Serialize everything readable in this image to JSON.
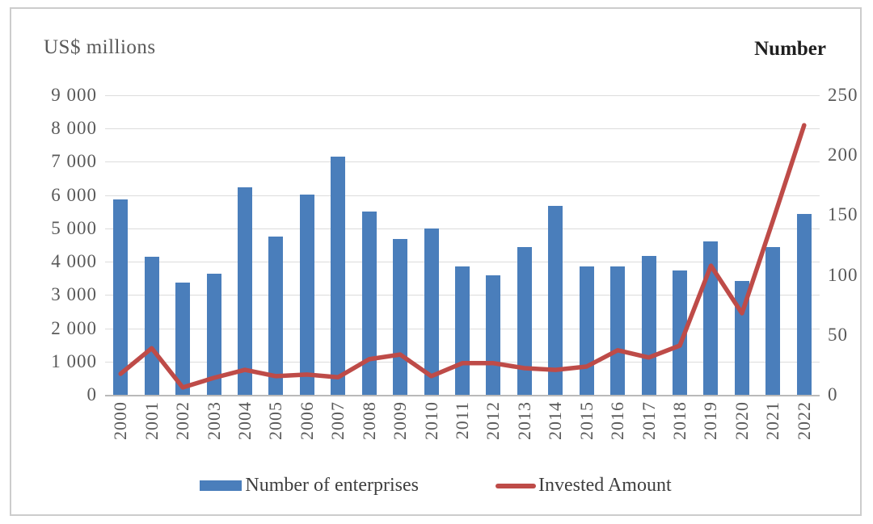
{
  "figure": {
    "left_axis_title": "US$ millions",
    "right_axis_title": "Number"
  },
  "legend": {
    "items": [
      {
        "label": "Number of enterprises",
        "swatch": "bar",
        "color": "#4a7ebb"
      },
      {
        "label": "Invested Amount",
        "swatch": "line",
        "color": "#be4b48"
      }
    ]
  },
  "colors": {
    "bar_blue": "#4a7ebb",
    "line_red": "#be4b48",
    "gridline": "#dcdcdc",
    "axis_zero_line": "#b9b9b9",
    "tick_text": "#595959",
    "frame_border": "#cccccc"
  },
  "chart_data": {
    "type": "bar+line combo",
    "title": "",
    "categories": [
      "2000",
      "2001",
      "2002",
      "2003",
      "2004",
      "2005",
      "2006",
      "2007",
      "2008",
      "2009",
      "2010",
      "2011",
      "2012",
      "2013",
      "2014",
      "2015",
      "2016",
      "2017",
      "2018",
      "2019",
      "2020",
      "2021",
      "2022"
    ],
    "series": [
      {
        "name": "Number of enterprises",
        "type": "bar",
        "axis": "right",
        "color": "#4a7ebb",
        "values": [
          163,
          115,
          94,
          101,
          173,
          132,
          167,
          199,
          153,
          130,
          139,
          107,
          100,
          123,
          158,
          107,
          107,
          116,
          104,
          128,
          95,
          123,
          151
        ]
      },
      {
        "name": "Invested Amount",
        "type": "line",
        "axis": "left",
        "color": "#be4b48",
        "values": [
          630,
          1400,
          220,
          510,
          750,
          560,
          610,
          530,
          1070,
          1210,
          560,
          950,
          950,
          800,
          750,
          850,
          1340,
          1120,
          1480,
          3880,
          2450,
          5240,
          8100
        ]
      }
    ],
    "left_axis": {
      "title": "US$ millions",
      "min": 0,
      "max": 9000,
      "tick_interval": 1000,
      "tick_labels": [
        "9 000",
        "8 000",
        "7 000",
        "6 000",
        "5 000",
        "4 000",
        "3 000",
        "2 000",
        "1 000",
        "0"
      ]
    },
    "right_axis": {
      "title": "Number",
      "min": 0,
      "max": 250,
      "tick_interval": 50,
      "tick_labels": [
        "250",
        "200",
        "150",
        "100",
        "50",
        "0"
      ]
    },
    "gridlines": true,
    "legend_position": "bottom"
  }
}
